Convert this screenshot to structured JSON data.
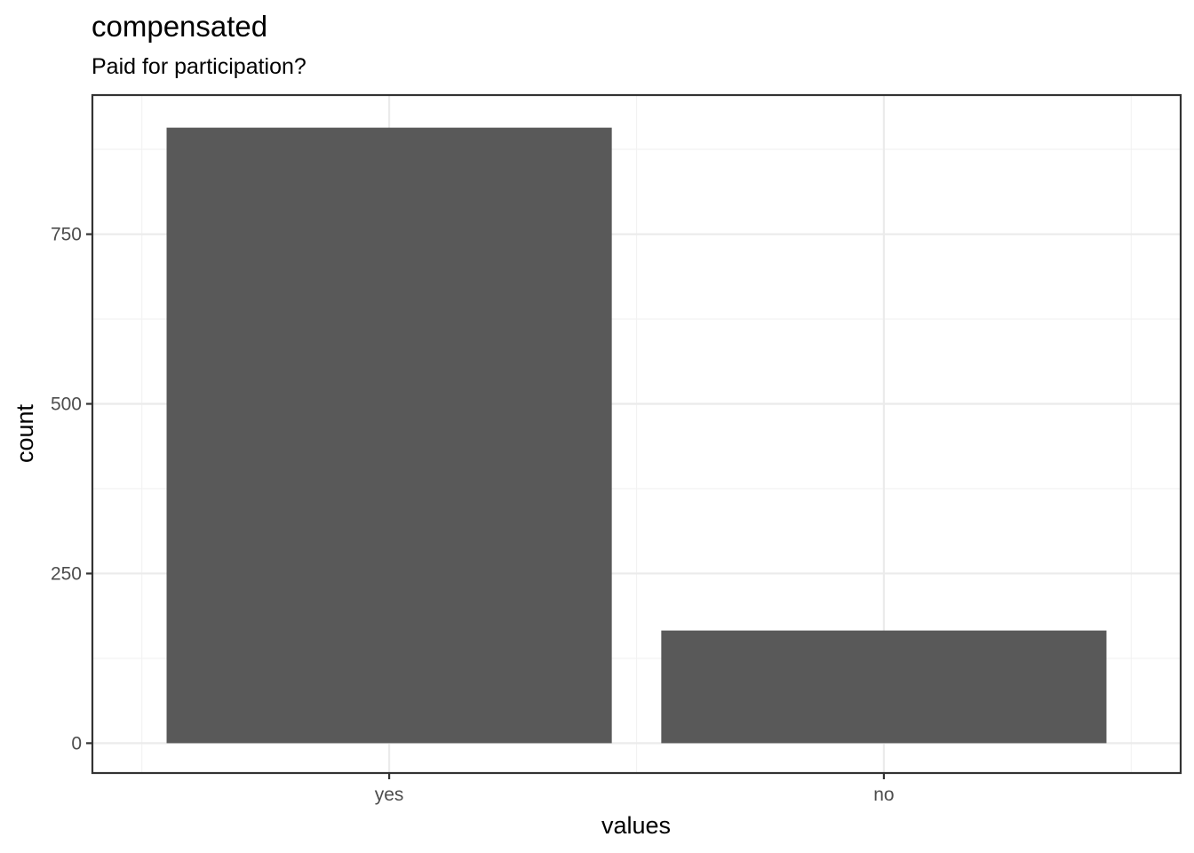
{
  "chart_data": {
    "type": "bar",
    "title": "compensated",
    "subtitle": "Paid for participation?",
    "xlabel": "values",
    "ylabel": "count",
    "categories": [
      "yes",
      "no"
    ],
    "values": [
      907,
      166
    ],
    "ylim": [
      -44,
      955
    ],
    "yticks": [
      0,
      250,
      500,
      750
    ],
    "ytick_labels": [
      "0",
      "250",
      "500",
      "750"
    ],
    "grid": true,
    "bar_color": "#595959",
    "legend": "none"
  }
}
